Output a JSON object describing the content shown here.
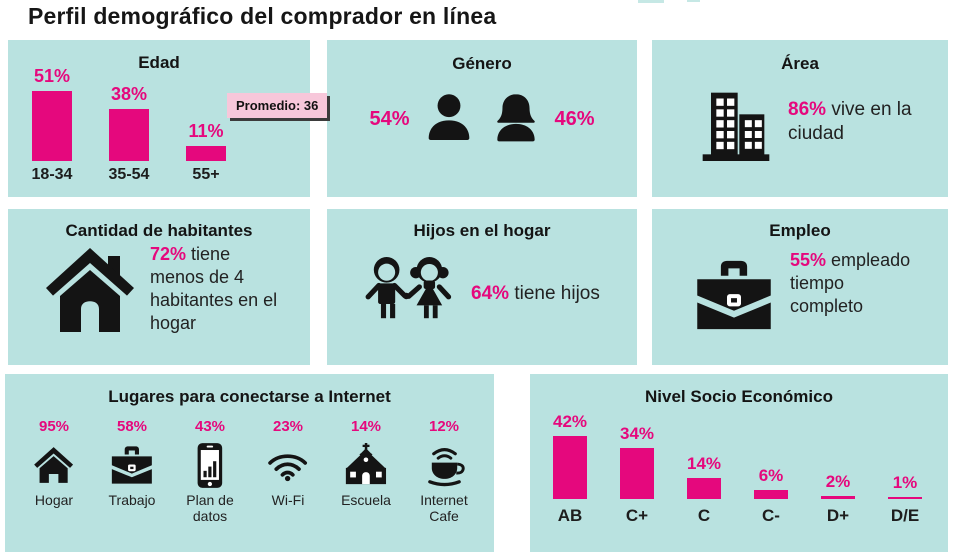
{
  "page_title": "Perfil demográfico del comprador en línea",
  "colors": {
    "panel_bg": "#B9E2E0",
    "accent_pink": "#E5087D",
    "callout_bg": "#F7C7DA",
    "callout_shadow": "#3B3B3B",
    "text_dark": "#1D1D1D",
    "icon_black": "#141414"
  },
  "chart_data": [
    {
      "type": "bar",
      "panel": "Edad",
      "categories": [
        "18-34",
        "35-54",
        "55+"
      ],
      "values": [
        51,
        38,
        11
      ],
      "value_labels": [
        "51%",
        "38%",
        "11%"
      ],
      "annotation": "Promedio: 36",
      "unit": "%",
      "ylim": [
        0,
        55
      ],
      "grid": false,
      "bar_color": "#E5087D"
    },
    {
      "type": "bar",
      "panel": "Nivel Socio Económico",
      "categories": [
        "AB",
        "C+",
        "C",
        "C-",
        "D+",
        "D/E"
      ],
      "values": [
        42,
        34,
        14,
        6,
        2,
        1
      ],
      "value_labels": [
        "42%",
        "34%",
        "14%",
        "6%",
        "2%",
        "1%"
      ],
      "unit": "%",
      "ylim": [
        0,
        45
      ],
      "grid": false,
      "bar_color": "#E5087D"
    },
    {
      "type": "pictogram",
      "panel": "Lugares para conectarse a Internet",
      "categories": [
        "Hogar",
        "Trabajo",
        "Plan de datos",
        "Wi-Fi",
        "Escuela",
        "Internet Cafe"
      ],
      "values": [
        95,
        58,
        43,
        23,
        14,
        12
      ],
      "unit": "%"
    }
  ],
  "panels": {
    "edad": {
      "title": "Edad",
      "callout": "Promedio: 36"
    },
    "genero": {
      "title": "Género",
      "male_value": "54%",
      "female_value": "46%",
      "male_icon": "male-person-icon",
      "female_icon": "female-person-icon"
    },
    "area": {
      "title": "Área",
      "icon": "building-icon",
      "value": "86%",
      "text": "vive en la ciudad"
    },
    "habitantes": {
      "title": "Cantidad de habitantes",
      "icon": "house-icon",
      "value": "72%",
      "text": "tiene menos de 4 habitantes en el hogar"
    },
    "hijos": {
      "title": "Hijos en el hogar",
      "icon": "children-icon",
      "value": "64%",
      "text": "tiene hijos"
    },
    "empleo": {
      "title": "Empleo",
      "icon": "briefcase-icon",
      "value": "55%",
      "text": "empleado tiempo completo"
    },
    "lugares": {
      "title": "Lugares para conectarse a Internet",
      "items": [
        {
          "value_label": "95%",
          "label": "Hogar",
          "icon": "home-icon"
        },
        {
          "value_label": "58%",
          "label": "Trabajo",
          "icon": "briefcase-icon"
        },
        {
          "value_label": "43%",
          "label": "Plan de datos",
          "icon": "mobile-data-icon"
        },
        {
          "value_label": "23%",
          "label": "Wi-Fi",
          "icon": "wifi-icon"
        },
        {
          "value_label": "14%",
          "label": "Escuela",
          "icon": "school-icon"
        },
        {
          "value_label": "12%",
          "label": "Internet Cafe",
          "icon": "internet-cafe-icon"
        }
      ]
    },
    "nivel": {
      "title": "Nivel Socio Económico"
    }
  }
}
